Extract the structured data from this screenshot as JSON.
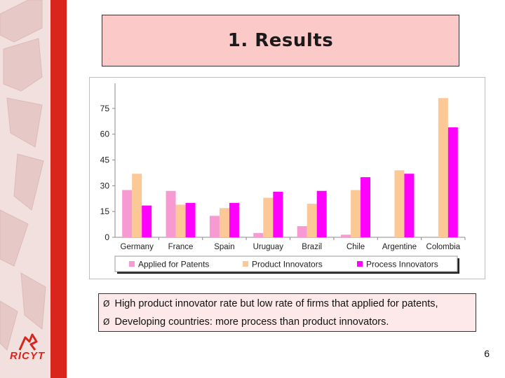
{
  "slide": {
    "title": "1. Results",
    "page_number": "6",
    "logo_text": "RICYT"
  },
  "bullets": [
    {
      "marker": "Ø",
      "text": "High product innovator rate but low rate of firms that applied for patents,"
    },
    {
      "marker": "Ø",
      "text": "Developing countries: more process than product innovators."
    }
  ],
  "colors": {
    "band": "#f1e0de",
    "red_strip": "#d9251b",
    "title_box": "#fcc9c9",
    "applied_for_patents": "#f79ad2",
    "product_innovators": "#fbc896",
    "process_innovators": "#ff00ff"
  },
  "chart_data": {
    "type": "bar",
    "title": "",
    "xlabel": "",
    "ylabel": "",
    "categories": [
      "Germany",
      "France",
      "Spain",
      "Uruguay",
      "Brazil",
      "Chile",
      "Argentine",
      "Colombia"
    ],
    "series": [
      {
        "name": "Applied for Patents",
        "values": [
          27.5,
          27,
          12.5,
          2.5,
          6.5,
          1.5,
          0,
          0
        ]
      },
      {
        "name": "Product Innovators",
        "values": [
          37,
          19,
          17,
          23,
          19.5,
          27.5,
          39,
          81
        ]
      },
      {
        "name": "Process Innovators",
        "values": [
          18.5,
          20,
          20,
          26.5,
          27,
          35,
          37,
          64
        ]
      }
    ],
    "yticks": [
      0,
      15,
      30,
      45,
      60,
      75
    ],
    "ylim": [
      0,
      88
    ],
    "grid": false,
    "legend_position": "bottom"
  }
}
